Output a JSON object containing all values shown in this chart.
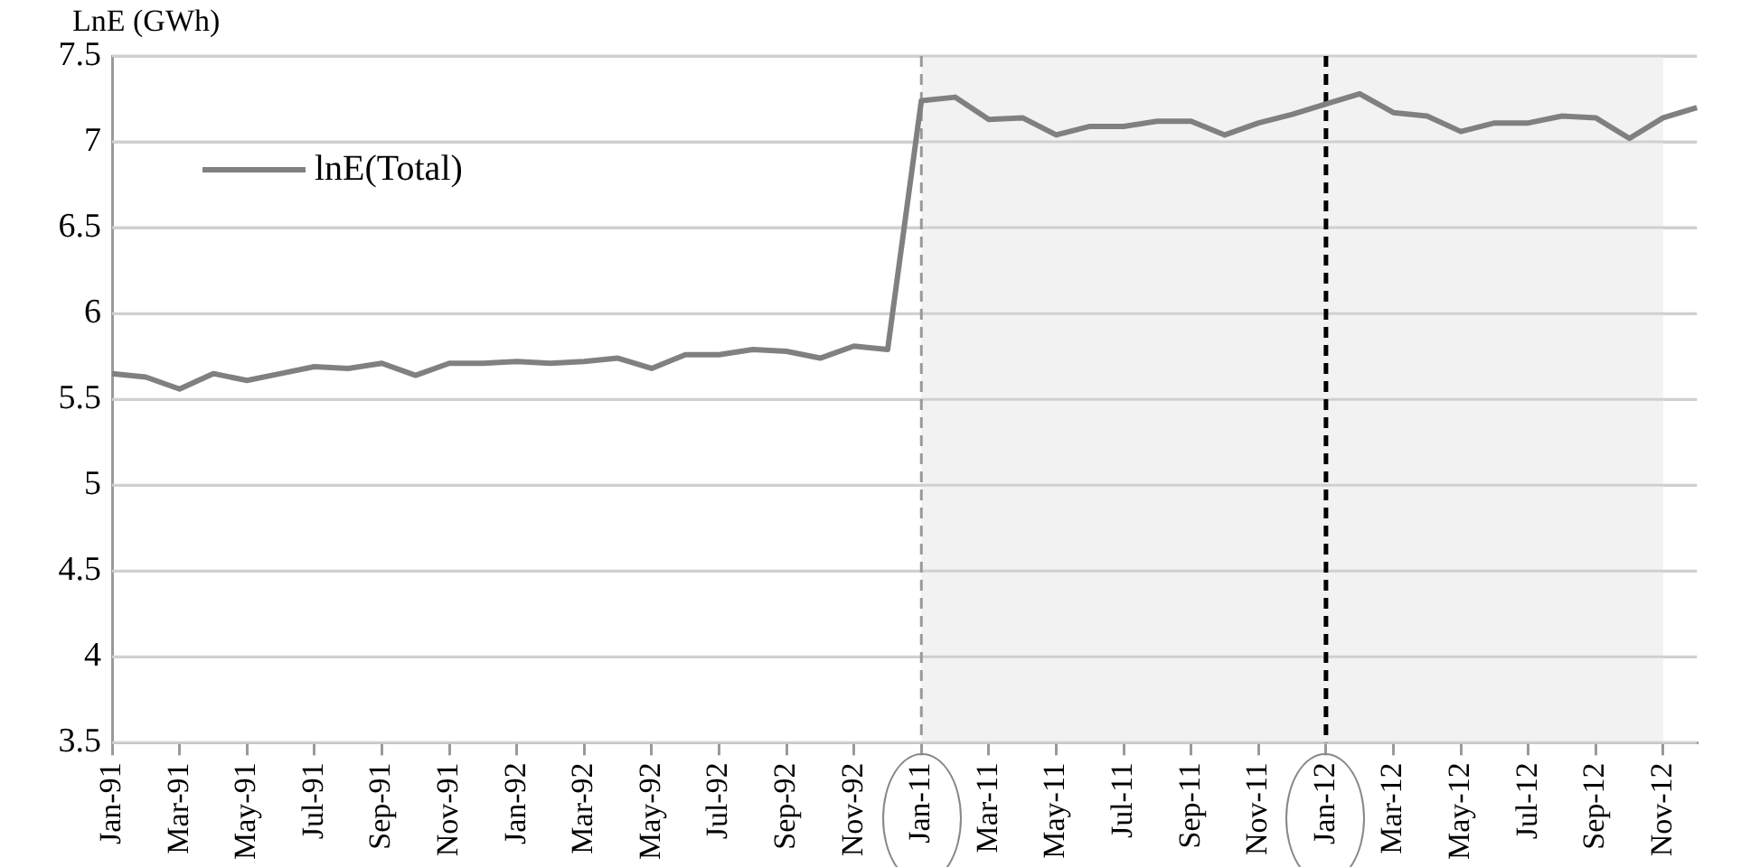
{
  "chart_data": {
    "type": "line",
    "ylabel": "LnE (GWh)",
    "categories": [
      "Jan-91",
      null,
      "Mar-91",
      null,
      "May-91",
      null,
      "Jul-91",
      null,
      "Sep-91",
      null,
      "Nov-91",
      null,
      "Jan-92",
      null,
      "Mar-92",
      null,
      "May-92",
      null,
      "Jul-92",
      null,
      "Sep-92",
      null,
      "Nov-92",
      null,
      "Jan-11",
      null,
      "Mar-11",
      null,
      "May-11",
      null,
      "Jul-11",
      null,
      "Sep-11",
      null,
      "Nov-11",
      null,
      "Jan-12",
      null,
      "Mar-12",
      null,
      "May-12",
      null,
      "Jul-12",
      null,
      "Sep-12",
      null,
      "Nov-12",
      null
    ],
    "series": [
      {
        "name": "lnE(Total)",
        "color": "#808080",
        "values": [
          5.65,
          5.63,
          5.56,
          5.65,
          5.61,
          5.65,
          5.69,
          5.68,
          5.71,
          5.64,
          5.71,
          5.71,
          5.72,
          5.71,
          5.72,
          5.74,
          5.68,
          5.76,
          5.76,
          5.79,
          5.78,
          5.74,
          5.81,
          5.79,
          7.24,
          7.26,
          7.13,
          7.14,
          7.04,
          7.09,
          7.09,
          7.12,
          7.12,
          7.04,
          7.11,
          7.16,
          7.22,
          7.28,
          7.17,
          7.15,
          7.06,
          7.11,
          7.11,
          7.15,
          7.14,
          7.02,
          7.14,
          7.2
        ]
      }
    ],
    "ylim": [
      3.5,
      7.5
    ],
    "yticks": [
      3.5,
      4,
      4.5,
      5,
      5.5,
      6,
      6.5,
      7,
      7.5
    ],
    "bands": [
      {
        "axis": "x",
        "from": "Jan-11",
        "to": "Nov-12",
        "color": "#f2f2f2"
      }
    ],
    "ref_lines": [
      {
        "axis": "x",
        "value": "Jan-11",
        "color": "#999999",
        "line_style": "dashed"
      },
      {
        "axis": "x",
        "value": "Jan-12",
        "color": "#000000",
        "line_style": "dashed"
      }
    ],
    "grid": "y",
    "legend": "top left",
    "marker": "none",
    "line_style": "solid"
  }
}
